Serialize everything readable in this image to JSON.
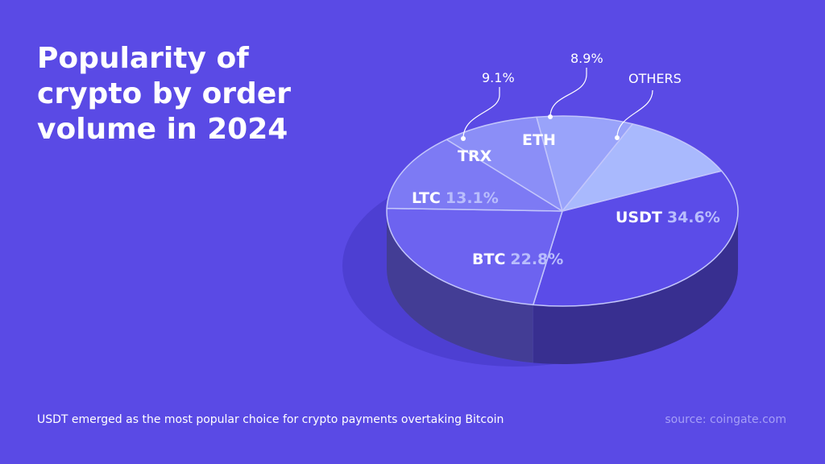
{
  "chart_data": {
    "type": "pie",
    "title": [
      "Popularity of",
      "crypto by order",
      "volume in 2024"
    ],
    "categories": [
      "USDT",
      "BTC",
      "LTC",
      "TRX",
      "ETH",
      "OTHERS"
    ],
    "values": [
      34.6,
      22.8,
      13.1,
      9.1,
      8.9,
      11.5
    ],
    "value_labels": [
      "34.6%",
      "22.8%",
      "13.1%",
      "9.1%",
      "8.9%",
      null
    ],
    "colors": [
      "#5b4ce8",
      "#6d63f0",
      "#7d7af4",
      "#8b8ef7",
      "#99a3fa",
      "#a9b9fd"
    ],
    "footnote": "USDT emerged as the most popular choice for crypto payments overtaking Bitcoin",
    "source": "source: coingate.com"
  }
}
